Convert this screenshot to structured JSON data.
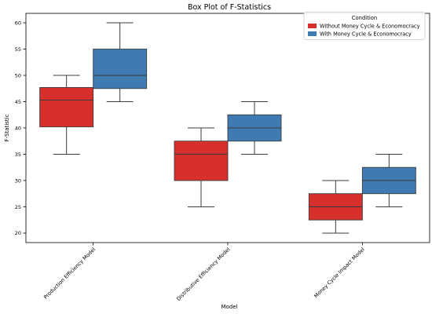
{
  "chart_data": {
    "type": "box",
    "title": "Box Plot of F-Statistics",
    "xlabel": "Model",
    "ylabel": "F-Statistic",
    "ylim": [
      18.2,
      61.8
    ],
    "yticks": [
      20,
      25,
      30,
      35,
      40,
      45,
      50,
      55,
      60
    ],
    "categories": [
      "Production Efficiency Model",
      "Distributive Efficiency Model",
      "Money Cycle Impact Model"
    ],
    "legend": {
      "title": "Condition",
      "placement": "top-right"
    },
    "series": [
      {
        "name": "Without Money Cycle & Economocracy",
        "color": "#d62f2c",
        "boxes": [
          {
            "min": 35,
            "q1": 40.2,
            "median": 45.3,
            "q3": 47.7,
            "max": 50
          },
          {
            "min": 25,
            "q1": 30,
            "median": 35,
            "q3": 37.5,
            "max": 40
          },
          {
            "min": 20,
            "q1": 22.5,
            "median": 25,
            "q3": 27.5,
            "max": 30
          }
        ]
      },
      {
        "name": "With Money Cycle & Economocracy",
        "color": "#3f7ab3",
        "boxes": [
          {
            "min": 45,
            "q1": 47.5,
            "median": 50,
            "q3": 55,
            "max": 60
          },
          {
            "min": 35,
            "q1": 37.5,
            "median": 40,
            "q3": 42.5,
            "max": 45
          },
          {
            "min": 25,
            "q1": 27.5,
            "median": 30,
            "q3": 32.5,
            "max": 35
          }
        ]
      }
    ],
    "grid": false
  }
}
